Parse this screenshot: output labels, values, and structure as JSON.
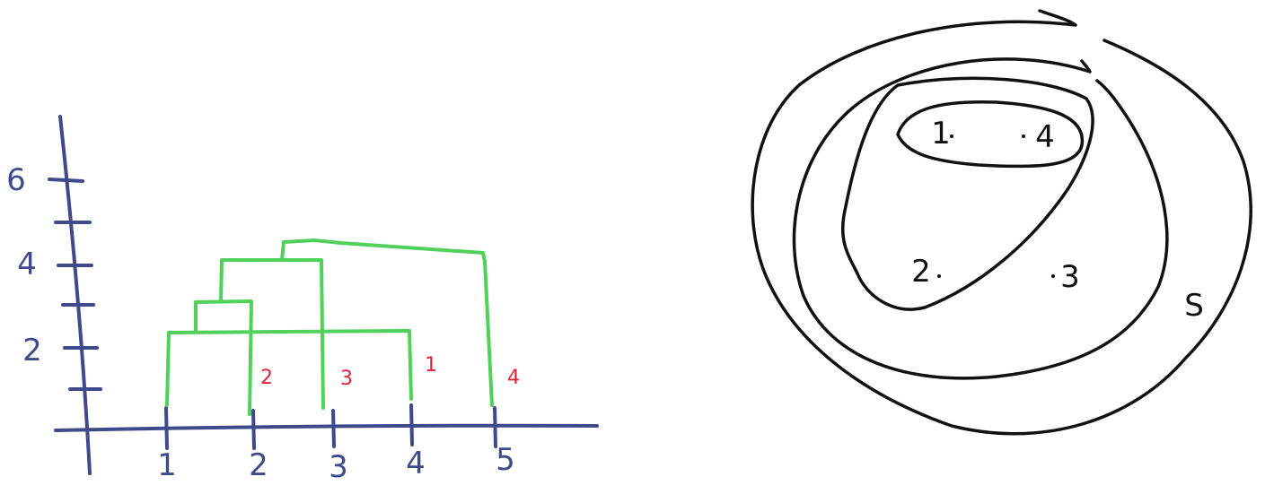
{
  "dendrogram": {
    "x_tick_labels": [
      "1",
      "2",
      "3",
      "4",
      "5"
    ],
    "y_tick_labels": [
      "2",
      "4",
      "6"
    ],
    "leaf_labels": [
      "2",
      "3",
      "1",
      "4"
    ]
  },
  "venn": {
    "point_labels": [
      "1",
      "4",
      "2",
      "3"
    ],
    "set_label": "S"
  },
  "colors": {
    "axis": "#3f4a8a",
    "dendrogram": "#4fd15a",
    "leaf_label": "#e0203a",
    "sets": "#111111"
  }
}
